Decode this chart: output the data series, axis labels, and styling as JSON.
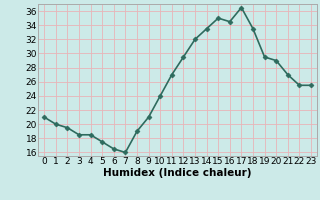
{
  "x": [
    0,
    1,
    2,
    3,
    4,
    5,
    6,
    7,
    8,
    9,
    10,
    11,
    12,
    13,
    14,
    15,
    16,
    17,
    18,
    19,
    20,
    21,
    22,
    23
  ],
  "y": [
    21.0,
    20.0,
    19.5,
    18.5,
    18.5,
    17.5,
    16.5,
    16.0,
    19.0,
    21.0,
    24.0,
    27.0,
    29.5,
    32.0,
    33.5,
    35.0,
    34.5,
    36.5,
    33.5,
    29.5,
    29.0,
    27.0,
    25.5,
    25.5
  ],
  "line_color": "#2e6b5e",
  "marker": "D",
  "marker_size": 2.5,
  "bg_color": "#cceae8",
  "grid_color": "#e8b4b8",
  "xlabel": "Humidex (Indice chaleur)",
  "xlabel_fontsize": 7.5,
  "ylabel_ticks": [
    16,
    18,
    20,
    22,
    24,
    26,
    28,
    30,
    32,
    34,
    36
  ],
  "xlim": [
    -0.5,
    23.5
  ],
  "ylim": [
    15.5,
    37.0
  ],
  "tick_fontsize": 6.5,
  "linewidth": 1.2
}
